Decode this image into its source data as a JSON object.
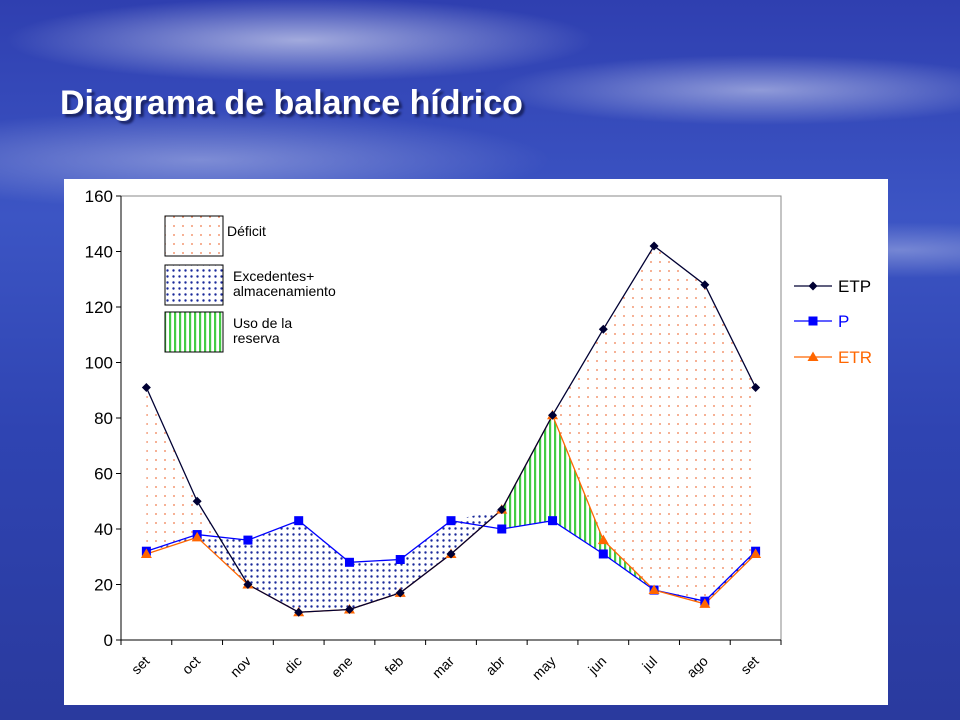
{
  "slide": {
    "title": "Diagrama de balance hídrico"
  },
  "chart_data": {
    "type": "line",
    "title": "",
    "xlabel": "",
    "ylabel": "",
    "categories": [
      "set",
      "oct",
      "nov",
      "dic",
      "ene",
      "feb",
      "mar",
      "abr",
      "may",
      "jun",
      "jul",
      "ago",
      "set"
    ],
    "ylim": [
      0,
      160
    ],
    "yticks": [
      0,
      20,
      40,
      60,
      80,
      100,
      120,
      140,
      160
    ],
    "grid": false,
    "legend_position": "right",
    "series": [
      {
        "name": "ETP",
        "color": "#000033",
        "marker": "diamond",
        "values": [
          91,
          50,
          20,
          10,
          11,
          17,
          31,
          47,
          81,
          112,
          142,
          128,
          91
        ]
      },
      {
        "name": "P",
        "color": "#0000ff",
        "marker": "square",
        "values": [
          32,
          38,
          36,
          43,
          28,
          29,
          43,
          40,
          43,
          31,
          18,
          14,
          32
        ]
      },
      {
        "name": "ETR",
        "color": "#ff6600",
        "marker": "triangle",
        "values": [
          31,
          37,
          20,
          10,
          11,
          17,
          31,
          47,
          81,
          36,
          18,
          13,
          31
        ]
      }
    ],
    "area_legend": [
      {
        "label_lines": [
          "Déficit"
        ],
        "pattern": "dots-orange"
      },
      {
        "label_lines": [
          "Excedentes+",
          "almacenamiento"
        ],
        "pattern": "dots-blue"
      },
      {
        "label_lines": [
          "Uso de la",
          "reserva"
        ],
        "pattern": "stripes-green"
      }
    ]
  }
}
